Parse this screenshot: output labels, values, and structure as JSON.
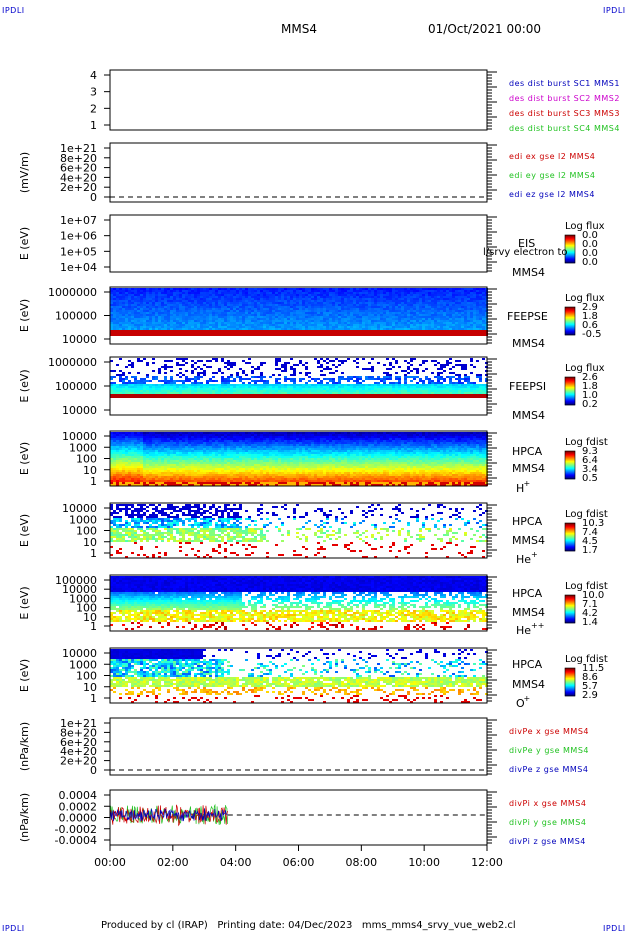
{
  "corner_label": "IPDLI",
  "header": {
    "title": "MMS4",
    "datetime": "01/Oct/2021 00:00"
  },
  "footer": {
    "text": "Produced by cl (IRAP)   Printing date: 04/Dec/2023   mms_mms4_srvy_vue_web2.cl"
  },
  "colors": {
    "red": "#cc0000",
    "green": "#22c222",
    "blue": "#0000bb",
    "magenta": "#cc00cc"
  },
  "chart_data": [
    {
      "type": "line",
      "yticks": [
        "4",
        "3",
        "2",
        "1"
      ],
      "series": [
        {
          "name": "des dist burst SC1 MMS1",
          "color": "#0000bb",
          "values": []
        },
        {
          "name": "des dist burst SC2 MMS2",
          "color": "#cc00cc",
          "values": []
        },
        {
          "name": "des dist burst SC3 MMS3",
          "color": "#cc0000",
          "values": []
        },
        {
          "name": "des dist burst SC4 MMS4",
          "color": "#22c222",
          "values": []
        }
      ]
    },
    {
      "type": "line",
      "ylabel": "(mV/m)",
      "yticks": [
        "1e+21",
        "8e+20",
        "6e+20",
        "4e+20",
        "2e+20",
        "0"
      ],
      "series": [
        {
          "name": "edi ex gse l2 MMS4",
          "color": "#cc0000",
          "values": []
        },
        {
          "name": "edi ey gse l2 MMS4",
          "color": "#22c222",
          "values": []
        },
        {
          "name": "edi ez gse l2 MMS4",
          "color": "#0000bb",
          "values": []
        }
      ]
    },
    {
      "type": "heatmap",
      "ylabel": "E (eV)",
      "yticks": [
        "1e+07",
        "1e+06",
        "1e+05",
        "1e+04"
      ],
      "instrument": "EIS",
      "spacecraft": "MMS4",
      "overlay_text": "l/srvy electron to",
      "colorbar": {
        "title": "Log flux",
        "ticks": [
          "0.0",
          "0.0",
          "0.0",
          "0.0"
        ]
      }
    },
    {
      "type": "heatmap",
      "ylabel": "E (eV)",
      "yticks": [
        "1000000",
        "100000",
        "10000"
      ],
      "instrument": "FEEPSE",
      "spacecraft": "MMS4",
      "colorbar": {
        "title": "Log flux",
        "ticks": [
          "2.9",
          "1.8",
          "0.6",
          "-0.5"
        ]
      }
    },
    {
      "type": "heatmap",
      "ylabel": "E (eV)",
      "yticks": [
        "1000000",
        "100000",
        "10000"
      ],
      "instrument": "FEEPSI",
      "spacecraft": "MMS4",
      "colorbar": {
        "title": "Log flux",
        "ticks": [
          "2.6",
          "1.8",
          "1.0",
          "0.2"
        ]
      }
    },
    {
      "type": "heatmap",
      "ylabel": "E (eV)",
      "yticks": [
        "10000",
        "1000",
        "100",
        "10",
        "1"
      ],
      "instrument": "HPCA",
      "spacecraft": "MMS4",
      "species": "H",
      "charge": "+",
      "colorbar": {
        "title": "Log fdist",
        "ticks": [
          "9.3",
          "6.4",
          "3.4",
          "0.5"
        ]
      }
    },
    {
      "type": "heatmap",
      "ylabel": "E (eV)",
      "yticks": [
        "10000",
        "1000",
        "100",
        "10",
        "1"
      ],
      "instrument": "HPCA",
      "spacecraft": "MMS4",
      "species": "He",
      "charge": "+",
      "colorbar": {
        "title": "Log fdist",
        "ticks": [
          "10.3",
          "7.4",
          "4.5",
          "1.7"
        ]
      }
    },
    {
      "type": "heatmap",
      "ylabel": "E (eV)",
      "yticks": [
        "100000",
        "10000",
        "1000",
        "100",
        "10",
        "1"
      ],
      "instrument": "HPCA",
      "spacecraft": "MMS4",
      "species": "He",
      "charge": "++",
      "colorbar": {
        "title": "Log fdist",
        "ticks": [
          "10.0",
          "7.1",
          "4.2",
          "1.4"
        ]
      }
    },
    {
      "type": "heatmap",
      "ylabel": "E (eV)",
      "yticks": [
        "10000",
        "1000",
        "100",
        "10",
        "1"
      ],
      "instrument": "HPCA",
      "spacecraft": "MMS4",
      "species": "O",
      "charge": "+",
      "colorbar": {
        "title": "Log fdist",
        "ticks": [
          "11.5",
          "8.6",
          "5.7",
          "2.9"
        ]
      }
    },
    {
      "type": "line",
      "ylabel": "(nPa/km)",
      "yticks": [
        "1e+21",
        "8e+20",
        "6e+20",
        "4e+20",
        "2e+20",
        "0"
      ],
      "series": [
        {
          "name": "divPe x gse MMS4",
          "color": "#cc0000",
          "values": []
        },
        {
          "name": "divPe y gse MMS4",
          "color": "#22c222",
          "values": []
        },
        {
          "name": "divPe z gse MMS4",
          "color": "#0000bb",
          "values": []
        }
      ]
    },
    {
      "type": "line",
      "ylabel": "(nPa/km)",
      "yticks": [
        "0.0004",
        "0.0002",
        "0.0000",
        "-0.0002",
        "-0.0004"
      ],
      "ylim": [
        -0.0005,
        0.0005
      ],
      "data_end": "03:45",
      "series": [
        {
          "name": "divPi x gse MMS4",
          "color": "#cc0000",
          "values": []
        },
        {
          "name": "divPi y gse MMS4",
          "color": "#22c222",
          "values": []
        },
        {
          "name": "divPi z gse MMS4",
          "color": "#0000bb",
          "values": []
        }
      ]
    }
  ],
  "xaxis": {
    "ticks": [
      "00:00",
      "02:00",
      "04:00",
      "06:00",
      "08:00",
      "10:00",
      "12:00"
    ]
  }
}
